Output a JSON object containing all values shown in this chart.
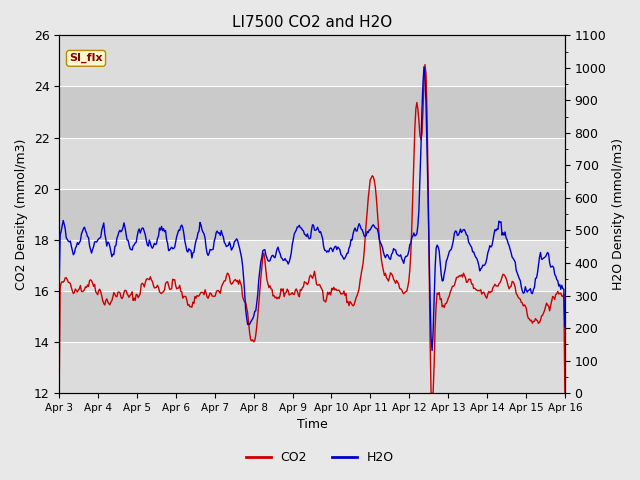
{
  "title": "LI7500 CO2 and H2O",
  "xlabel": "Time",
  "ylabel_left": "CO2 Density (mmol/m3)",
  "ylabel_right": "H2O Density (mmol/m3)",
  "annotation_text": "SI_flx",
  "annotation_color": "#8B0000",
  "annotation_bg": "#FFFACD",
  "annotation_border": "#B8860B",
  "co2_color": "#CC0000",
  "h2o_color": "#0000CC",
  "co2_ylim": [
    12,
    26
  ],
  "h2o_ylim": [
    0,
    1100
  ],
  "bg_color": "#E8E8E8",
  "plot_bg_light": "#DCDCDC",
  "plot_bg_dark": "#C8C8C8",
  "xtick_labels": [
    "Apr 3",
    "Apr 4",
    "Apr 5",
    "Apr 6",
    "Apr 7",
    "Apr 8",
    "Apr 9",
    "Apr 10",
    "Apr 11",
    "Apr 12",
    "Apr 13",
    "Apr 14",
    "Apr 15",
    "Apr 16"
  ],
  "ytick_left": [
    12,
    14,
    16,
    18,
    20,
    22,
    24,
    26
  ],
  "ytick_right_major": [
    0,
    100,
    200,
    300,
    400,
    500,
    600,
    700,
    800,
    900,
    1000,
    1100
  ],
  "linewidth": 1.0,
  "legend_co2": "CO2",
  "legend_h2o": "H2O",
  "random_seed": 42
}
